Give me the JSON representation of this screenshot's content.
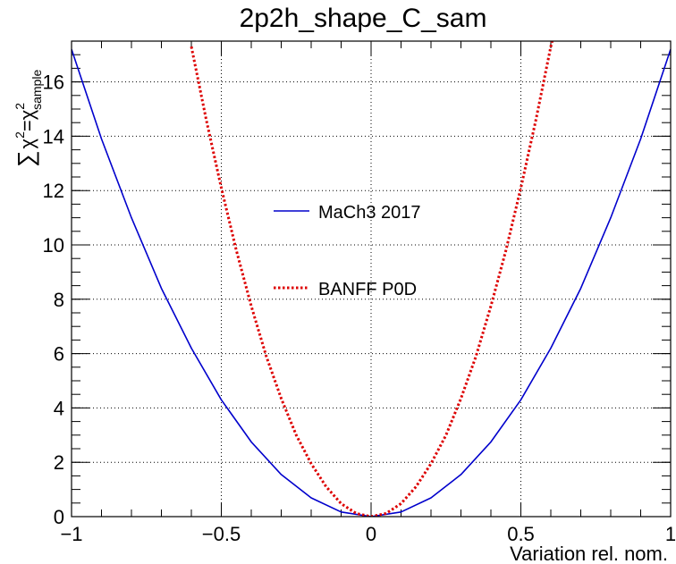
{
  "chart_data": {
    "type": "line",
    "title": "2p2h_shape_C_sam",
    "xlabel": "Variation rel. nom.",
    "ylabel": {
      "sum": "∑",
      "chi": "χ",
      "eq": "=χ",
      "sup1": "2",
      "sup2": "2",
      "sub": "sample"
    },
    "xlim": [
      -1.0,
      1.0
    ],
    "ylim": [
      0,
      17.5
    ],
    "x_ticks": [
      -1,
      -0.5,
      0,
      0.5,
      1
    ],
    "x_tick_labels": [
      "−1",
      "−0.5",
      "0",
      "0.5",
      "1"
    ],
    "y_ticks": [
      0,
      2,
      4,
      6,
      8,
      10,
      12,
      14,
      16
    ],
    "y_tick_labels": [
      "0",
      "2",
      "4",
      "6",
      "8",
      "10",
      "12",
      "14",
      "16"
    ],
    "grid": true,
    "legend_position": "center",
    "series": [
      {
        "name": "MaCh3 2017",
        "color": "#0000cc",
        "style": "solid",
        "x": [
          -1.0,
          -0.9,
          -0.8,
          -0.7,
          -0.6,
          -0.5,
          -0.4,
          -0.3,
          -0.2,
          -0.1,
          0.0,
          0.1,
          0.2,
          0.3,
          0.4,
          0.5,
          0.6,
          0.7,
          0.8,
          0.9,
          1.0
        ],
        "y": [
          17.2,
          13.9,
          11.0,
          8.4,
          6.2,
          4.3,
          2.75,
          1.55,
          0.69,
          0.17,
          0.0,
          0.17,
          0.69,
          1.55,
          2.75,
          4.3,
          6.2,
          8.4,
          11.0,
          13.9,
          17.2
        ]
      },
      {
        "name": "BANFF P0D",
        "color": "#dd0000",
        "style": "dotted",
        "x": [
          -0.6,
          -0.55,
          -0.5,
          -0.45,
          -0.4,
          -0.35,
          -0.3,
          -0.25,
          -0.2,
          -0.15,
          -0.1,
          -0.05,
          0.0,
          0.05,
          0.1,
          0.15,
          0.2,
          0.25,
          0.3,
          0.35,
          0.4,
          0.45,
          0.5,
          0.55,
          0.6,
          0.63
        ],
        "y": [
          17.3,
          14.6,
          12.1,
          9.8,
          7.75,
          5.9,
          4.35,
          3.0,
          1.95,
          1.1,
          0.48,
          0.12,
          0.0,
          0.12,
          0.48,
          1.1,
          1.95,
          3.0,
          4.35,
          5.9,
          7.75,
          9.8,
          12.1,
          14.6,
          17.3,
          18.6
        ]
      }
    ]
  }
}
